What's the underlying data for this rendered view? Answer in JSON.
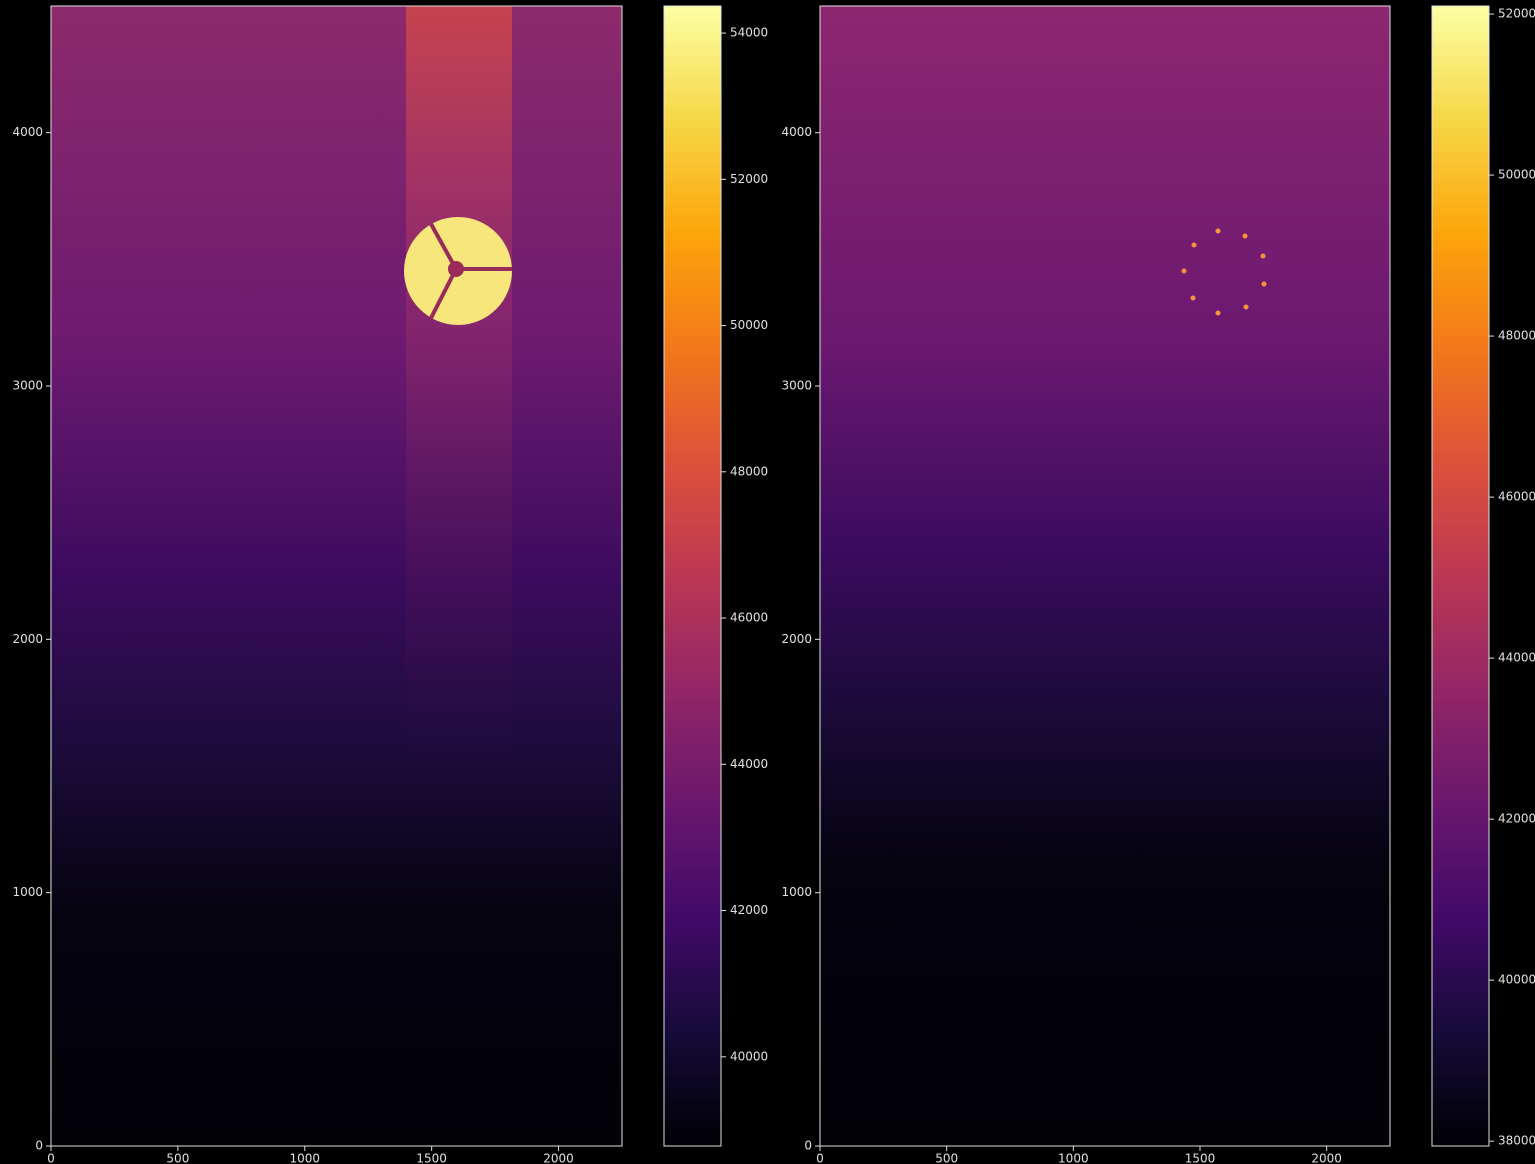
{
  "chart_data": [
    {
      "type": "image",
      "colormap": "inferno",
      "xlim": [
        0,
        2250
      ],
      "xticks": [
        0,
        500,
        1000,
        1500,
        2000
      ],
      "ylim": [
        0,
        4500
      ],
      "yticks": [
        0,
        1000,
        2000,
        3000,
        4000
      ],
      "colorbar": {
        "clim": [
          38780,
          54370
        ],
        "ticks": [
          40000,
          42000,
          44000,
          46000,
          48000,
          50000,
          52000,
          54000
        ]
      }
    },
    {
      "type": "image",
      "colormap": "inferno",
      "xlim": [
        0,
        2250
      ],
      "xticks": [
        0,
        500,
        1000,
        1500,
        2000
      ],
      "ylim": [
        0,
        4500
      ],
      "yticks": [
        0,
        1000,
        2000,
        3000,
        4000
      ],
      "colorbar": {
        "clim": [
          37940,
          52100
        ],
        "ticks": [
          38000,
          40000,
          42000,
          44000,
          46000,
          48000,
          50000,
          52000
        ]
      }
    }
  ]
}
